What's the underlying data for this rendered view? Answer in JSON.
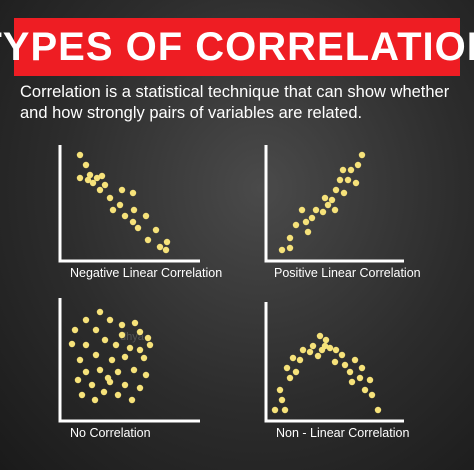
{
  "header": {
    "title": "TYPES OF CORRELATION",
    "subtitle": "Correlation is a statistical technique that can show whether and how strongly pairs of variables are related."
  },
  "colors": {
    "banner": "#ee1d23",
    "dots": "#f6e27a",
    "text": "#ffffff"
  },
  "watermark": "dhya",
  "panels": [
    {
      "caption": "Negative Linear Correlation",
      "pattern": "negative"
    },
    {
      "caption": "Positive Linear Correlation",
      "pattern": "positive"
    },
    {
      "caption": "No Correlation",
      "pattern": "none"
    },
    {
      "caption": "Non - Linear Correlation",
      "pattern": "non-linear"
    }
  ]
}
